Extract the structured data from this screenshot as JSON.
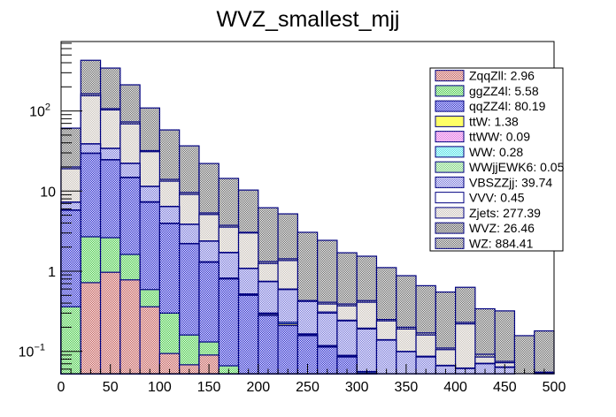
{
  "chart_data": {
    "type": "bar",
    "subtype": "stacked-histogram",
    "title": "WVZ_smallest_mjj",
    "xlabel": "",
    "ylabel": "",
    "xlim": [
      0,
      500
    ],
    "ylim": [
      0.052,
      700
    ],
    "yscale": "log",
    "grid": false,
    "legend_position": "top-right",
    "bin_edges": [
      0,
      20,
      40,
      60,
      80,
      100,
      120,
      140,
      160,
      180,
      200,
      220,
      240,
      260,
      280,
      300,
      320,
      340,
      360,
      380,
      400,
      420,
      440,
      460,
      480,
      500
    ],
    "x_ticks": [
      "0",
      "50",
      "100",
      "150",
      "200",
      "250",
      "300",
      "350",
      "400",
      "450",
      "500"
    ],
    "x_tick_values": [
      0,
      50,
      100,
      150,
      200,
      250,
      300,
      350,
      400,
      450,
      500
    ],
    "y_ticks": [
      {
        "value": 0.1,
        "base": "10",
        "exp": "−1"
      },
      {
        "value": 1,
        "base": "1",
        "exp": ""
      },
      {
        "value": 10,
        "base": "10",
        "exp": ""
      },
      {
        "value": 100,
        "base": "10",
        "exp": "2"
      }
    ],
    "stack_order_bottom_to_top": [
      "ZqqZll",
      "ggZZ4l",
      "qqZZ4l",
      "ttW",
      "ttWW",
      "WW",
      "WWjjEWK6",
      "VBSZZjj",
      "VVV",
      "Zjets",
      "WVZ",
      "WZ"
    ],
    "cumulative_tops": {
      "ZqqZll": [
        0,
        0.72,
        0.97,
        0.78,
        0.36,
        0.094,
        0.068,
        0.09,
        0,
        0,
        0,
        0,
        0,
        0,
        0,
        0,
        0,
        0,
        0,
        0,
        0,
        0,
        0,
        0,
        0
      ],
      "ggZZ4l": [
        0.36,
        2.69,
        2.62,
        1.62,
        0.59,
        0.3,
        0.16,
        0.131,
        0.066,
        0,
        0,
        0,
        0,
        0,
        0,
        0,
        0,
        0,
        0,
        0,
        0,
        0,
        0,
        0,
        0
      ],
      "qqZZ4l": [
        5.76,
        29.5,
        24.5,
        14.7,
        7.25,
        3.93,
        2.2,
        1.29,
        0.8,
        0.5,
        0.28,
        0.21,
        0.157,
        0.113,
        0.085,
        0.053,
        0,
        0,
        0,
        0,
        0,
        0,
        0,
        0,
        0
      ],
      "ttW": [
        5.78,
        29.6,
        24.6,
        14.8,
        7.3,
        3.95,
        2.21,
        1.3,
        0.81,
        0.51,
        0.29,
        0.22,
        0.16,
        0.115,
        0.087,
        0.054,
        0,
        0,
        0,
        0,
        0,
        0,
        0,
        0,
        0
      ],
      "ttWW": [
        5.78,
        29.6,
        24.6,
        14.8,
        7.3,
        3.95,
        2.21,
        1.3,
        0.81,
        0.51,
        0.29,
        0.22,
        0.16,
        0.115,
        0.087,
        0.054,
        0,
        0,
        0,
        0,
        0,
        0,
        0,
        0,
        0
      ],
      "WW": [
        5.8,
        29.7,
        24.7,
        14.9,
        7.35,
        3.97,
        2.22,
        1.31,
        0.82,
        0.52,
        0.3,
        0.23,
        0.165,
        0.118,
        0.089,
        0.056,
        0,
        0,
        0,
        0,
        0,
        0,
        0,
        0,
        0
      ],
      "WWjjEWK6": [
        5.8,
        29.7,
        24.7,
        14.9,
        7.35,
        3.97,
        2.22,
        1.31,
        0.82,
        0.52,
        0.3,
        0.23,
        0.165,
        0.118,
        0.089,
        0.056,
        0,
        0,
        0,
        0,
        0,
        0,
        0,
        0,
        0
      ],
      "VBSZZjj": [
        7.25,
        38.7,
        34.0,
        22.1,
        11.4,
        6.4,
        3.84,
        2.37,
        1.7,
        1.08,
        0.74,
        0.59,
        0.42,
        0.3,
        0.24,
        0.19,
        0.138,
        0.099,
        0.085,
        0.066,
        0.061,
        0.07,
        0.063,
        0,
        0
      ],
      "VVV": [
        7.3,
        39.0,
        34.3,
        22.3,
        11.5,
        6.45,
        3.87,
        2.39,
        1.72,
        1.09,
        0.75,
        0.6,
        0.43,
        0.31,
        0.245,
        0.195,
        0.14,
        0.1,
        0.087,
        0.067,
        0.062,
        0.071,
        0.064,
        0,
        0
      ],
      "Zjets": [
        19.0,
        155,
        103,
        69,
        31,
        13.3,
        9.1,
        5.1,
        3.55,
        3.0,
        1.25,
        1.36,
        0.41,
        0.39,
        0.37,
        0.41,
        0.24,
        0.19,
        0.16,
        0.105,
        0.22,
        0.085,
        0.072,
        0,
        0.054
      ],
      "WVZ": [
        20.0,
        164,
        107,
        73,
        32,
        14.0,
        9.6,
        5.34,
        3.74,
        3.06,
        1.32,
        1.43,
        0.43,
        0.41,
        0.39,
        0.43,
        0.25,
        0.2,
        0.17,
        0.11,
        0.23,
        0.092,
        0.075,
        0,
        0.055
      ],
      "WZ": [
        61,
        429,
        343,
        212,
        109,
        58,
        36.7,
        22.1,
        14.4,
        10.3,
        6.2,
        5.2,
        3.06,
        2.43,
        1.7,
        1.54,
        1.11,
        0.88,
        0.66,
        0.55,
        0.63,
        0.34,
        0.32,
        0.157,
        0.18
      ]
    },
    "series": [
      {
        "name": "ZqqZll",
        "label": "ZqqZll: 2.96",
        "integral": 2.96,
        "color": "#c0504d",
        "fill": "#d9807f",
        "pattern": "hatch-red"
      },
      {
        "name": "ggZZ4l",
        "label": "ggZZ4l: 5.58",
        "integral": 5.58,
        "color": "#3cc83c",
        "fill": "#7fe67f",
        "pattern": "hatch-green"
      },
      {
        "name": "qqZZ4l",
        "label": "qqZZ4l: 80.19",
        "integral": 80.19,
        "color": "#1a1acc",
        "fill": "#5b5be6",
        "pattern": "hatch-blue"
      },
      {
        "name": "ttW",
        "label": "ttW: 1.38",
        "integral": 1.38,
        "color": "#ffff66",
        "fill": "#ffff66",
        "pattern": "solid"
      },
      {
        "name": "ttWW",
        "label": "ttWW: 0.09",
        "integral": 0.09,
        "color": "#e060e0",
        "fill": "#e68fe6",
        "pattern": "hatch-magenta"
      },
      {
        "name": "WW",
        "label": "WW: 0.28",
        "integral": 0.28,
        "color": "#40e0e6",
        "fill": "#7feef0",
        "pattern": "hatch-cyan"
      },
      {
        "name": "WWjjEWK6",
        "label": "WWjjEWK6: 0.05",
        "integral": 0.05,
        "color": "#70d070",
        "fill": "#a6e6a6",
        "pattern": "hatch-lightgreen"
      },
      {
        "name": "VBSZZjj",
        "label": "VBSZZjj: 39.74",
        "integral": 39.74,
        "color": "#7070d8",
        "fill": "#a9a9ea",
        "pattern": "hatch-lightblue"
      },
      {
        "name": "VVV",
        "label": "VVV: 0.45",
        "integral": 0.45,
        "color": "#ffffff",
        "fill": "#ffffff",
        "pattern": "solid"
      },
      {
        "name": "Zjets",
        "label": "Zjets: 277.39",
        "integral": 277.39,
        "color": "#c8c0b8",
        "fill": "#e8e4e0",
        "pattern": "hatch-beige"
      },
      {
        "name": "WVZ",
        "label": "WVZ: 26.46",
        "integral": 26.46,
        "color": "#505050",
        "fill": "#9a9a9a",
        "pattern": "hatch-darkgray"
      },
      {
        "name": "WZ",
        "label": "WZ: 884.41",
        "integral": 884.41,
        "color": "#606060",
        "fill": "#a8a8a8",
        "pattern": "hatch-gray"
      }
    ]
  }
}
